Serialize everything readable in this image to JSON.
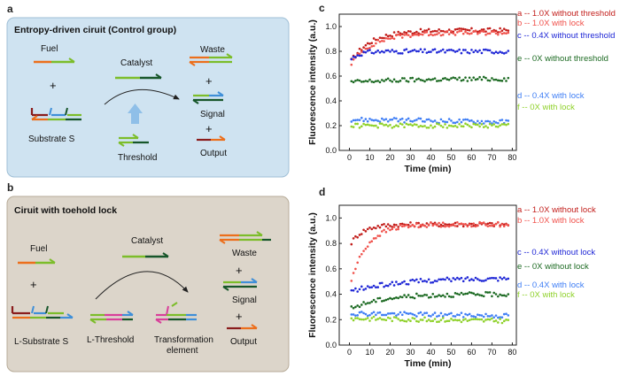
{
  "panel_a": {
    "letter": "a",
    "title": "Entropy-driven ciruit (Control group)",
    "fuel": "Fuel",
    "plus1": "+",
    "substrate": "Substrate S",
    "catalyst": "Catalyst",
    "threshold": "Threshold",
    "waste": "Waste",
    "plus2": "+",
    "signal": "Signal",
    "plus3": "+",
    "output": "Output"
  },
  "panel_b": {
    "letter": "b",
    "title": "Ciruit with toehold lock",
    "fuel": "Fuel",
    "plus1": "+",
    "substrate": "L-Substrate S",
    "catalyst": "Catalyst",
    "threshold": "L-Threshold",
    "transform_line1": "Transformation",
    "transform_line2": "element",
    "waste": "Waste",
    "plus2": "+",
    "signal": "Signal",
    "plus3": "+",
    "output": "Output"
  },
  "colors": {
    "panel_a_bg": "#cfe3f1",
    "panel_b_bg": "#dcd5ca",
    "red": "#e8211b",
    "dark_red": "#c21d1a",
    "blue": "#1f27d6",
    "light_blue": "#3f7ef5",
    "dark_green": "#1c6a22",
    "light_green": "#8fd12a",
    "strand_orange": "#ec6f1c",
    "strand_green": "#7cbd2a",
    "strand_dkgreen": "#17562a",
    "strand_blue": "#3f8fd8",
    "strand_darkblue": "#1d3f8f",
    "strand_maroon": "#8a1c1c",
    "strand_pink": "#d8409a"
  },
  "chart_data": [
    {
      "panel": "c",
      "type": "scatter",
      "title": "",
      "xlabel": "Time (min)",
      "ylabel": "Fluorescence intensity (a.u.)",
      "xlim": [
        -5,
        82
      ],
      "ylim": [
        0,
        1.1
      ],
      "xticks": [
        0,
        10,
        20,
        30,
        40,
        50,
        60,
        70,
        80
      ],
      "yticks": [
        0.0,
        0.2,
        0.4,
        0.6,
        0.8,
        1.0
      ],
      "series": [
        {
          "id": "a",
          "name": "a -- 1.0X without threshold",
          "color": "#c21d1a",
          "kind": "rise",
          "start": 0.7,
          "plateau": 0.97,
          "tau": 10
        },
        {
          "id": "b",
          "name": "b -- 1.0X with lock",
          "color": "#f0514b",
          "kind": "rise",
          "start": 0.68,
          "plateau": 0.95,
          "tau": 11
        },
        {
          "id": "c",
          "name": "c -- 0.4X without threshold",
          "color": "#1f27d6",
          "kind": "rise",
          "start": 0.72,
          "plateau": 0.8,
          "tau": 4
        },
        {
          "id": "e",
          "name": "e -- 0X without threshold",
          "color": "#1c6a22",
          "kind": "rise",
          "start": 0.55,
          "plateau": 0.58,
          "tau": 30
        },
        {
          "id": "d",
          "name": "d -- 0.4X with lock",
          "color": "#3f7ef5",
          "kind": "flat",
          "start": 0.25,
          "plateau": 0.23,
          "tau": 40
        },
        {
          "id": "f",
          "name": "f -- 0X with lock",
          "color": "#8fd12a",
          "kind": "flat",
          "start": 0.2,
          "plateau": 0.2,
          "tau": 40
        }
      ]
    },
    {
      "panel": "d",
      "type": "scatter",
      "title": "",
      "xlabel": "Time (min)",
      "ylabel": "Fluorescence intensity (a.u.)",
      "xlim": [
        -5,
        82
      ],
      "ylim": [
        0,
        1.1
      ],
      "xticks": [
        0,
        10,
        20,
        30,
        40,
        50,
        60,
        70,
        80
      ],
      "yticks": [
        0.0,
        0.2,
        0.4,
        0.6,
        0.8,
        1.0
      ],
      "series": [
        {
          "id": "a",
          "name": "a -- 1.0X without lock",
          "color": "#c21d1a",
          "kind": "rise",
          "start": 0.78,
          "plateau": 0.95,
          "tau": 6
        },
        {
          "id": "b",
          "name": "b -- 1.0X with lock",
          "color": "#f0514b",
          "kind": "rise",
          "start": 0.45,
          "plateau": 0.95,
          "tau": 8
        },
        {
          "id": "c",
          "name": "c -- 0.4X without lock",
          "color": "#1f27d6",
          "kind": "rise",
          "start": 0.42,
          "plateau": 0.53,
          "tau": 25
        },
        {
          "id": "e",
          "name": "e -- 0X without lock",
          "color": "#1c6a22",
          "kind": "rise",
          "start": 0.28,
          "plateau": 0.4,
          "tau": 15
        },
        {
          "id": "d",
          "name": "d -- 0.4X with lock",
          "color": "#3f7ef5",
          "kind": "flat",
          "start": 0.25,
          "plateau": 0.23,
          "tau": 40
        },
        {
          "id": "f",
          "name": "f -- 0X with lock",
          "color": "#8fd12a",
          "kind": "flat",
          "start": 0.21,
          "plateau": 0.19,
          "tau": 40
        }
      ]
    }
  ]
}
